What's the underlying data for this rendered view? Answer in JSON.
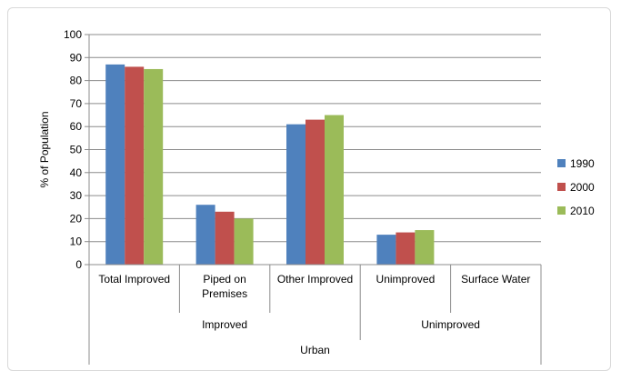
{
  "chart_data": {
    "type": "bar",
    "title": "",
    "ylabel": "% of Population",
    "xlabel": "",
    "ylim": [
      0,
      100
    ],
    "yticks": [
      0,
      10,
      20,
      30,
      40,
      50,
      60,
      70,
      80,
      90,
      100
    ],
    "categories": [
      "Total Improved",
      "Piped on Premises",
      "Other Improved",
      "Unimproved",
      "Surface Water"
    ],
    "category_lines": [
      [
        "Total Improved"
      ],
      [
        "Piped on",
        "Premises"
      ],
      [
        "Other Improved"
      ],
      [
        "Unimproved"
      ],
      [
        "Surface Water"
      ]
    ],
    "groups": [
      {
        "label": "Improved",
        "categories": [
          "Total Improved",
          "Piped on Premises",
          "Other Improved"
        ]
      },
      {
        "label": "Unimproved",
        "categories": [
          "Unimproved",
          "Surface Water"
        ]
      }
    ],
    "supergroup": "Urban",
    "series": [
      {
        "name": "1990",
        "color": "#4f81bd",
        "values": [
          87,
          26,
          61,
          13,
          0
        ]
      },
      {
        "name": "2000",
        "color": "#c0504d",
        "values": [
          86,
          23,
          63,
          14,
          0
        ]
      },
      {
        "name": "2010",
        "color": "#9bbb59",
        "values": [
          85,
          20,
          65,
          15,
          0
        ]
      }
    ],
    "grid": true,
    "legend_position": "right"
  }
}
